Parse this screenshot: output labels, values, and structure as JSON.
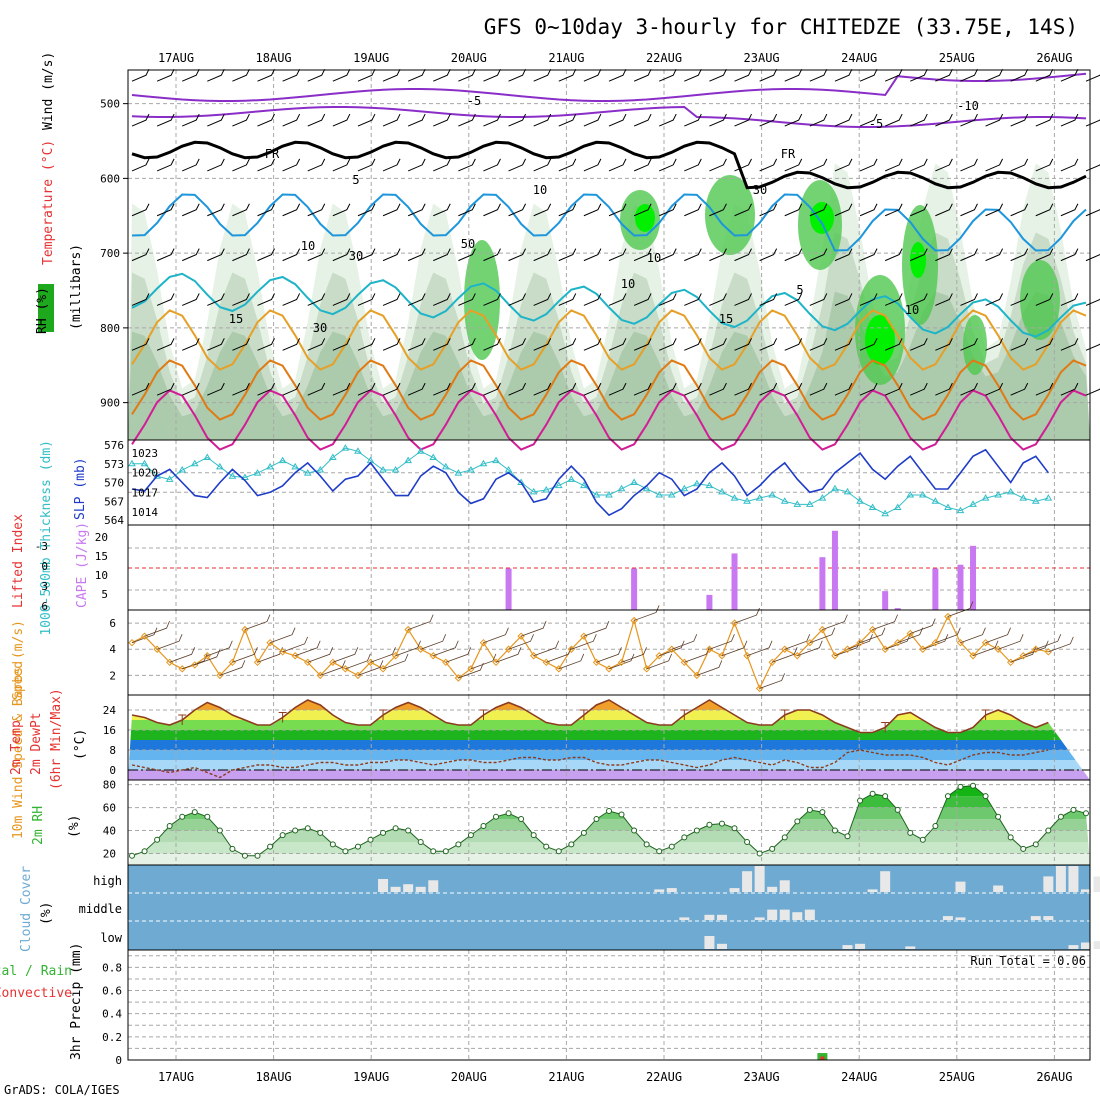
{
  "title": "GFS 0~10day 3-hourly for CHITEDZE (33.75E, 14S)",
  "footer": "GrADS: COLA/IGES",
  "run_total": "Run Total = 0.06",
  "dates": [
    "17AUG",
    "18AUG",
    "19AUG",
    "20AUG",
    "21AUG",
    "22AUG",
    "23AUG",
    "24AUG",
    "25AUG",
    "26AUG"
  ],
  "colors": {
    "sounding_rh": "#5ac85a",
    "temp_purple": "#8a2ec8",
    "temp_blue": "#1e96dc",
    "temp_cyan": "#1eb4c8",
    "temp_orange": "#e6a028",
    "temp_red": "#d21e96",
    "slp": "#1e3cc8",
    "thickness": "#32bec8",
    "cape": "#c878f0",
    "lifted_index": "#e63232",
    "wind10": "#e6961e",
    "temp2m": "#8c3c1e",
    "rh2m": "#32b432",
    "cloud": "#6eaad2",
    "precip_total": "#32b432",
    "precip_conv": "#e63232"
  },
  "panels": {
    "sounding": {
      "ylabel_wind": "Wind (m/s)",
      "ylabel_temp": "Temperature (°C)",
      "ylabel_rh": "RH (%)",
      "ylabel_axis": "(millibars)",
      "ticks": [
        "500",
        "600",
        "700",
        "800",
        "900"
      ],
      "contour_labels": [
        "-5",
        "-5",
        "-10",
        "FR",
        "FR",
        "5",
        "5",
        "10",
        "10",
        "10",
        "15",
        "15",
        "10",
        "30",
        "50",
        "30",
        "10",
        "30"
      ]
    },
    "slp": {
      "ylabel_left": "1000-500mb Thickness (dm)",
      "ylabel_right": "SLP (mb)",
      "ticks_left": [
        "576",
        "573",
        "570",
        "567",
        "564"
      ],
      "ticks_right": [
        "1023",
        "1020",
        "1017",
        "1014"
      ]
    },
    "cape": {
      "ylabel_left": "Lifted Index",
      "ylabel_right": "CAPE (J/kg)",
      "ticks_left": [
        "-3",
        "0",
        "3",
        "6"
      ],
      "ticks_right": [
        "20",
        "15",
        "10",
        "5"
      ]
    },
    "wind": {
      "ylabel": "10m Wind Speed & Barbs (m/s)",
      "ticks": [
        "6",
        "4",
        "2"
      ]
    },
    "temp": {
      "ylabel": "2m Temp 2m DewPt (6hr Min/Max) (°C)",
      "ticks": [
        "24",
        "16",
        "8",
        "0"
      ]
    },
    "rh": {
      "ylabel": "2m RH (%)",
      "ticks": [
        "80",
        "60",
        "40",
        "20"
      ]
    },
    "cloud": {
      "ylabel": "Cloud Cover (%)",
      "levels": [
        "high",
        "middle",
        "low"
      ]
    },
    "precip": {
      "ylabel": "3hr Precip (mm)",
      "legend_total": "Total / Rain",
      "legend_conv": "Convective",
      "ticks": [
        "0.8",
        "0.6",
        "0.4",
        "0.2",
        "0"
      ]
    }
  },
  "chart_data": [
    {
      "type": "line",
      "title": "1000-500mb Thickness (dm) / SLP (mb)",
      "x_unit": "time step (3-hourly, 16AUG 18Z to 26AUG 06Z)",
      "series": [
        {
          "name": "SLP (mb)",
          "values": [
            1017.5,
            1017.2,
            1019.5,
            1020.5,
            1018.5,
            1016.5,
            1016.2,
            1018.5,
            1020.5,
            1018.8,
            1016.5,
            1017.0,
            1018.0,
            1020.0,
            1021.5,
            1019.5,
            1017.2,
            1019.0,
            1019.5,
            1021.5,
            1019.0,
            1016.5,
            1016.5,
            1019.5,
            1021.0,
            1020.0,
            1017.0,
            1015.3,
            1016.0,
            1019.0,
            1020.0,
            1018.5,
            1015.5,
            1016.0,
            1019.0,
            1021.0,
            1019.0,
            1015.5,
            1013.5,
            1014.5,
            1016.5,
            1018.0,
            1020.0,
            1019.0,
            1016.5,
            1017.5,
            1020.0,
            1021.5,
            1019.5,
            1016.5,
            1018.0,
            1020.0,
            1021.5,
            1019.0,
            1017.0,
            1017.5,
            1020.0,
            1021.5,
            1023.0,
            1020.5,
            1019.0,
            1021.0,
            1022.5,
            1020.0,
            1017.5,
            1017.5,
            1020.0,
            1022.5,
            1023.5,
            1021.0,
            1018.5,
            1021.5,
            1022.5,
            1020.0
          ]
        },
        {
          "name": "1000-500mb Thickness (dm)",
          "values": [
            573.0,
            573.0,
            571.0,
            570.5,
            572.0,
            573.0,
            574.0,
            572.5,
            571.0,
            570.8,
            571.5,
            572.5,
            573.5,
            572.5,
            571.5,
            572.0,
            574.0,
            575.5,
            575.0,
            573.5,
            572.0,
            572.0,
            573.5,
            575.0,
            574.0,
            572.5,
            571.5,
            572.0,
            573.0,
            573.5,
            572.0,
            570.0,
            568.5,
            568.8,
            569.5,
            570.5,
            569.5,
            568.0,
            568.0,
            569.0,
            570.0,
            569.0,
            568.0,
            568.0,
            569.0,
            569.8,
            569.5,
            568.5,
            567.5,
            567.0,
            567.5,
            568.0,
            567.0,
            566.5,
            566.5,
            567.5,
            569.0,
            568.5,
            567.0,
            566.0,
            565.0,
            566.0,
            568.0,
            568.0,
            567.0,
            566.0,
            565.5,
            566.5,
            567.5,
            568.0,
            568.5,
            567.5,
            567.0,
            567.5
          ]
        }
      ],
      "ylim_left": [
        564,
        576
      ],
      "ylim_right": [
        1012,
        1025
      ]
    },
    {
      "type": "bar",
      "title": "CAPE (J/kg) / Lifted Index",
      "x_unit": "time step",
      "series": [
        {
          "name": "CAPE (J/kg)",
          "points": [
            [
              30,
              11
            ],
            [
              40,
              11
            ],
            [
              46,
              4
            ],
            [
              48,
              15
            ],
            [
              55,
              14
            ],
            [
              56,
              21
            ],
            [
              60,
              5
            ],
            [
              61,
              0.5
            ],
            [
              64,
              11
            ],
            [
              66,
              12
            ],
            [
              67,
              17
            ]
          ]
        },
        {
          "name": "Lifted Index",
          "reference_line": 0
        }
      ],
      "ylim_right": [
        0,
        22
      ]
    },
    {
      "type": "line",
      "title": "10m Wind Speed & Barbs (m/s)",
      "x_unit": "time step",
      "series": [
        {
          "name": "10m Wind Speed",
          "values": [
            4.5,
            5.0,
            4.0,
            3.0,
            2.5,
            2.8,
            3.5,
            2.0,
            3.0,
            5.5,
            3.0,
            4.5,
            3.8,
            3.5,
            3.0,
            2.0,
            3.0,
            2.5,
            2.0,
            3.0,
            2.5,
            3.5,
            5.5,
            4.0,
            3.5,
            3.0,
            1.8,
            2.5,
            4.5,
            3.0,
            4.0,
            5.0,
            3.5,
            3.0,
            2.5,
            4.0,
            5.0,
            3.0,
            2.5,
            3.0,
            6.2,
            2.5,
            3.5,
            4.0,
            3.0,
            2.0,
            4.0,
            3.5,
            6.0,
            3.5,
            1.0,
            3.0,
            4.0,
            3.5,
            4.5,
            5.5,
            3.5,
            4.0,
            4.5,
            5.5,
            4.0,
            4.5,
            5.2,
            4.0,
            4.5,
            6.5,
            4.5,
            3.5,
            4.5,
            4.0,
            3.0,
            3.5,
            4.0,
            3.8
          ]
        }
      ],
      "ylim": [
        0.5,
        7
      ]
    },
    {
      "type": "line",
      "title": "2m Temp / 2m DewPt (°C)",
      "x_unit": "time step",
      "series": [
        {
          "name": "2m Temp",
          "values": [
            22,
            21,
            19,
            18,
            20,
            24,
            27,
            25,
            22,
            20,
            18,
            18,
            21,
            25,
            28,
            26,
            22,
            19,
            18,
            18,
            22,
            25,
            27,
            25,
            22,
            19,
            18,
            18,
            22,
            25,
            27,
            25,
            22,
            19,
            18,
            18,
            22,
            26,
            28,
            25,
            22,
            19,
            18,
            18,
            22,
            25,
            28,
            25,
            22,
            19,
            18,
            18,
            22,
            24,
            24,
            22,
            19,
            17,
            15,
            15,
            17,
            22,
            23,
            20,
            17,
            15,
            15,
            17,
            22,
            24,
            22,
            19,
            17,
            19
          ]
        },
        {
          "name": "2m DewPt",
          "values": [
            2,
            1,
            0,
            -1,
            0,
            1,
            -1,
            -3,
            0,
            1,
            2,
            2,
            1,
            1,
            2,
            3,
            3,
            2,
            2,
            3,
            3,
            4,
            4,
            3,
            2,
            3,
            4,
            4,
            3,
            3,
            4,
            5,
            5,
            4,
            4,
            5,
            5,
            3,
            2,
            2,
            3,
            4,
            4,
            3,
            2,
            1,
            2,
            4,
            5,
            4,
            3,
            2,
            4,
            3,
            1,
            1,
            3,
            7,
            8,
            7,
            6,
            6,
            6,
            5,
            3,
            2,
            4,
            6,
            7,
            7,
            6,
            6,
            7,
            8
          ]
        }
      ],
      "ylim": [
        -4,
        30
      ]
    },
    {
      "type": "area",
      "title": "2m RH (%)",
      "x_unit": "time step",
      "series": [
        {
          "name": "2m RH",
          "values": [
            18,
            22,
            32,
            44,
            52,
            56,
            52,
            40,
            24,
            18,
            18,
            26,
            36,
            40,
            42,
            38,
            28,
            22,
            26,
            32,
            38,
            42,
            40,
            30,
            22,
            22,
            28,
            36,
            44,
            52,
            55,
            50,
            36,
            26,
            22,
            28,
            38,
            50,
            57,
            54,
            40,
            28,
            22,
            26,
            34,
            40,
            45,
            46,
            42,
            30,
            20,
            24,
            34,
            48,
            58,
            56,
            40,
            35,
            66,
            72,
            70,
            58,
            38,
            32,
            44,
            70,
            78,
            79,
            70,
            52,
            34,
            24,
            28,
            40,
            52,
            58,
            55
          ]
        }
      ],
      "ylim": [
        10,
        84
      ]
    },
    {
      "type": "bar",
      "title": "Cloud Cover (%)",
      "x_unit": "time step",
      "series": [
        {
          "name": "high",
          "points": [
            [
              20,
              50
            ],
            [
              21,
              20
            ],
            [
              22,
              30
            ],
            [
              23,
              20
            ],
            [
              24,
              45
            ],
            [
              42,
              10
            ],
            [
              43,
              15
            ],
            [
              48,
              15
            ],
            [
              49,
              80
            ],
            [
              50,
              100
            ],
            [
              51,
              20
            ],
            [
              52,
              45
            ],
            [
              59,
              10
            ],
            [
              60,
              80
            ],
            [
              66,
              40
            ],
            [
              69,
              25
            ],
            [
              73,
              60
            ],
            [
              74,
              100
            ],
            [
              75,
              100
            ],
            [
              76,
              10
            ],
            [
              77,
              60
            ],
            [
              79,
              30
            ],
            [
              80,
              95
            ],
            [
              81,
              30
            ],
            [
              85,
              25
            ],
            [
              86,
              100
            ],
            [
              87,
              100
            ],
            [
              88,
              70
            ],
            [
              89,
              15
            ]
          ]
        },
        {
          "name": "middle",
          "points": [
            [
              44,
              10
            ],
            [
              46,
              20
            ],
            [
              47,
              20
            ],
            [
              50,
              10
            ],
            [
              51,
              40
            ],
            [
              52,
              40
            ],
            [
              53,
              30
            ],
            [
              54,
              40
            ],
            [
              65,
              15
            ],
            [
              66,
              10
            ],
            [
              72,
              15
            ],
            [
              73,
              15
            ],
            [
              78,
              30
            ],
            [
              79,
              100
            ]
          ]
        },
        {
          "name": "low",
          "points": [
            [
              46,
              50
            ],
            [
              47,
              20
            ],
            [
              57,
              15
            ],
            [
              58,
              20
            ],
            [
              62,
              10
            ],
            [
              75,
              15
            ],
            [
              76,
              25
            ],
            [
              77,
              30
            ],
            [
              78,
              100
            ],
            [
              79,
              20
            ],
            [
              80,
              15
            ],
            [
              81,
              15
            ],
            [
              82,
              100
            ],
            [
              83,
              100
            ],
            [
              84,
              30
            ],
            [
              85,
              30
            ],
            [
              86,
              30
            ],
            [
              87,
              40
            ],
            [
              88,
              80
            ]
          ]
        }
      ]
    },
    {
      "type": "bar",
      "title": "3hr Precip (mm)",
      "x_unit": "time step",
      "series": [
        {
          "name": "Total / Rain",
          "points": [
            [
              55,
              0.06
            ]
          ]
        },
        {
          "name": "Convective",
          "points": [
            [
              55,
              0.03
            ]
          ]
        }
      ],
      "ylim": [
        0,
        0.95
      ]
    }
  ]
}
